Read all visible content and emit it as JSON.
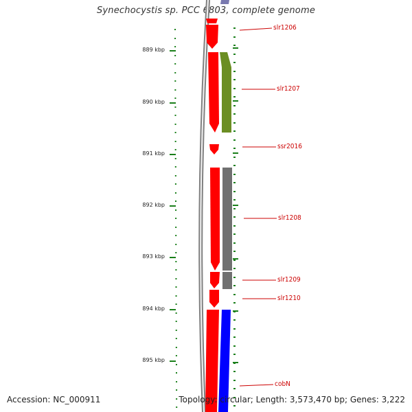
{
  "title": "Synechocystis sp. PCC 6803, complete genome",
  "footer": {
    "accession": "Accession: NC_000911",
    "topology": "Topology: circular; Length: 3,573,470 bp; Genes: 3,222"
  },
  "colors": {
    "backbone": "#808080",
    "tick": "#1a7f1a",
    "forward_cds": "#ff0000",
    "reverse_green": "#6b8e23",
    "reverse_grey": "#707070",
    "reverse_blue": "#0000ff",
    "label": "#cc0000"
  },
  "scale": {
    "unit": "kbp",
    "labels": [
      "889 kbp",
      "890 kbp",
      "891 kbp",
      "892 kbp",
      "893 kbp",
      "894 kbp",
      "895 kbp"
    ]
  },
  "genes": [
    {
      "name": "slr1206"
    },
    {
      "name": "slr1207"
    },
    {
      "name": "ssr2016"
    },
    {
      "name": "slr1208"
    },
    {
      "name": "slr1209"
    },
    {
      "name": "slr1210"
    },
    {
      "name": "cobN"
    }
  ]
}
